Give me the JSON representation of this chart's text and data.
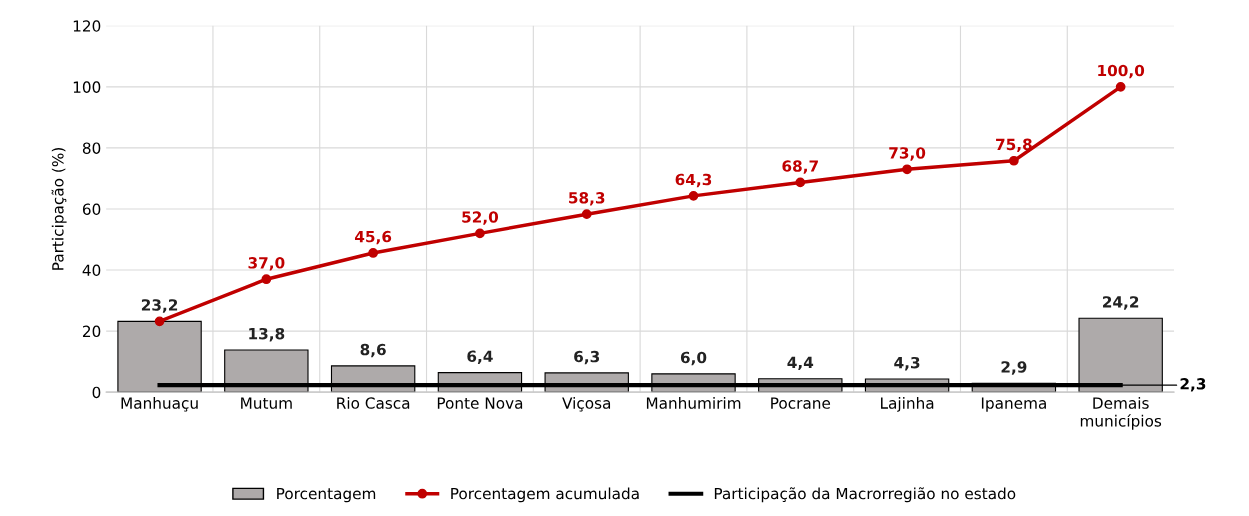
{
  "chart_data": {
    "type": "bar",
    "ylabel": "Participação (%)",
    "categories": [
      "Manhuaçu",
      "Mutum",
      "Rio Casca",
      "Ponte Nova",
      "Viçosa",
      "Manhumirim",
      "Pocrane",
      "Lajinha",
      "Ipanema",
      "Demais municípios"
    ],
    "series": [
      {
        "name": "Porcentagem",
        "color": "#aeaaaa",
        "values": [
          23.2,
          13.8,
          8.6,
          6.4,
          6.3,
          6.0,
          4.4,
          4.3,
          2.9,
          24.2
        ],
        "value_labels": [
          "23,2",
          "13,8",
          "8,6",
          "6,4",
          "6,3",
          "6,0",
          "4,4",
          "4,3",
          "2,9",
          "24,2"
        ]
      },
      {
        "name": "Porcentagem acumulada",
        "type": "line",
        "color": "#c00000",
        "marker": "circle",
        "values": [
          23.2,
          37.0,
          45.6,
          52.0,
          58.3,
          64.3,
          68.7,
          73.0,
          75.8,
          100.0
        ],
        "value_labels": [
          null,
          "37,0",
          "45,6",
          "52,0",
          "58,3",
          "64,3",
          "68,7",
          "73,0",
          "75,8",
          "100,0"
        ]
      },
      {
        "name": "Participação da Macrorregião no estado",
        "type": "line",
        "color": "#000000",
        "values": [
          2.3,
          2.3,
          2.3,
          2.3,
          2.3,
          2.3,
          2.3,
          2.3,
          2.3,
          2.3
        ],
        "value_labels": [
          null,
          null,
          null,
          null,
          null,
          null,
          null,
          null,
          null,
          "2,3"
        ]
      }
    ],
    "ylim": [
      0,
      120
    ],
    "yticks": [
      0,
      20,
      40,
      60,
      80,
      100,
      120
    ],
    "grid": true,
    "legend": "bottom"
  }
}
